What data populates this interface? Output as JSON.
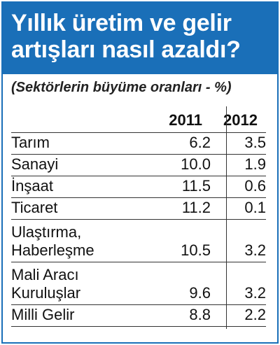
{
  "header": {
    "title_line1": "Yıllık üretim ve gelir",
    "title_line2": "artışları nasıl azaldı?",
    "subtitle": "(Sektörlerin büyüme oranları - %)"
  },
  "colors": {
    "accent": "#1a6fb8",
    "text": "#111111",
    "rules": "#333333"
  },
  "chart_data": {
    "type": "table",
    "title": "Yıllık üretim ve gelir artışları nasıl azaldı?",
    "subtitle": "(Sektörlerin büyüme oranları - %)",
    "columns": [
      "2011",
      "2012"
    ],
    "rows": [
      {
        "label_lines": [
          "Tarım"
        ],
        "values": [
          "6.2",
          "3.5"
        ]
      },
      {
        "label_lines": [
          "Sanayi"
        ],
        "values": [
          "10.0",
          "1.9"
        ]
      },
      {
        "label_lines": [
          "İnşaat"
        ],
        "values": [
          "11.5",
          "0.6"
        ]
      },
      {
        "label_lines": [
          "Ticaret"
        ],
        "values": [
          "11.2",
          "0.1"
        ]
      },
      {
        "label_lines": [
          "Ulaştırma,",
          "Haberleşme"
        ],
        "values": [
          "10.5",
          "3.2"
        ]
      },
      {
        "label_lines": [
          "Mali Aracı",
          "Kuruluşlar"
        ],
        "values": [
          "9.6",
          "3.2"
        ]
      },
      {
        "label_lines": [
          "Milli Gelir"
        ],
        "values": [
          "8.8",
          "2.2"
        ]
      }
    ]
  }
}
